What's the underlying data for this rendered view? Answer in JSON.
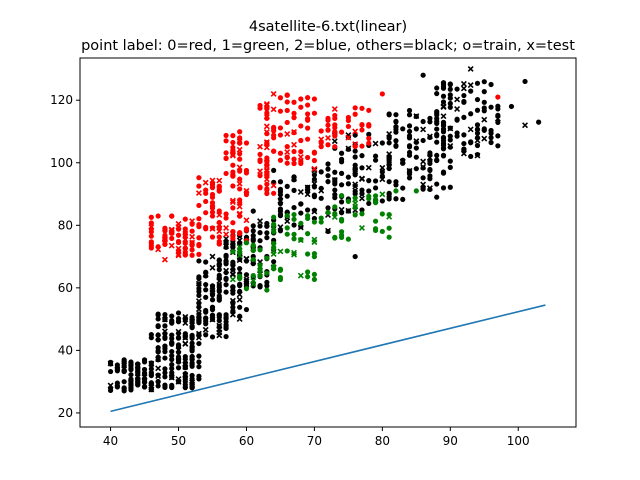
{
  "chart_data": {
    "type": "scatter",
    "title": "4satellite-6.txt(linear)",
    "subtitle": "point label: 0=red, 1=green, 2=blue, others=black; o=train, x=test",
    "xlim": [
      35.5,
      108.5
    ],
    "ylim": [
      15.5,
      133.5
    ],
    "x_ticks": [
      40,
      50,
      60,
      70,
      80,
      90,
      100
    ],
    "y_ticks": [
      20,
      40,
      60,
      80,
      100,
      120
    ],
    "grid": false,
    "colors": {
      "label0": "#ff0000",
      "label1": "#008000",
      "other": "#000000",
      "line": "#1f77b4"
    },
    "line": {
      "x": [
        40,
        104
      ],
      "y": [
        20.5,
        54.5
      ]
    },
    "clusters": [
      {
        "label": "other",
        "color": "#000000",
        "x": [
          40,
          46
        ],
        "y": [
          27,
          37
        ],
        "n": 90,
        "seed": 1
      },
      {
        "label": "other",
        "color": "#000000",
        "x": [
          46,
          53
        ],
        "y": [
          28,
          52
        ],
        "n": 160,
        "seed": 2
      },
      {
        "label": "other",
        "color": "#000000",
        "x": [
          53,
          57
        ],
        "y": [
          44,
          70
        ],
        "n": 90,
        "seed": 3
      },
      {
        "label": "other",
        "color": "#000000",
        "x": [
          57,
          60
        ],
        "y": [
          50,
          78
        ],
        "n": 70,
        "seed": 4
      },
      {
        "label": "other",
        "color": "#000000",
        "x": [
          60,
          64
        ],
        "y": [
          58,
          85
        ],
        "n": 50,
        "seed": 5
      },
      {
        "label": "other",
        "color": "#000000",
        "x": [
          64,
          72
        ],
        "y": [
          78,
          98
        ],
        "n": 60,
        "seed": 6
      },
      {
        "label": "other",
        "color": "#000000",
        "x": [
          72,
          82
        ],
        "y": [
          84,
          110
        ],
        "n": 90,
        "seed": 7
      },
      {
        "label": "other",
        "color": "#000000",
        "x": [
          80,
          90
        ],
        "y": [
          88,
          118
        ],
        "n": 110,
        "seed": 8
      },
      {
        "label": "other",
        "color": "#000000",
        "x": [
          88,
          97
        ],
        "y": [
          102,
          126
        ],
        "n": 90,
        "seed": 9
      },
      {
        "label": "0",
        "color": "#ff0000",
        "x": [
          46,
          53
        ],
        "y": [
          70,
          83
        ],
        "n": 70,
        "seed": 10
      },
      {
        "label": "0",
        "color": "#ff0000",
        "x": [
          53,
          57
        ],
        "y": [
          72,
          96
        ],
        "n": 50,
        "seed": 11
      },
      {
        "label": "0",
        "color": "#ff0000",
        "x": [
          57,
          60
        ],
        "y": [
          74,
          110
        ],
        "n": 60,
        "seed": 12
      },
      {
        "label": "0",
        "color": "#ff0000",
        "x": [
          62,
          64
        ],
        "y": [
          90,
          121
        ],
        "n": 50,
        "seed": 13
      },
      {
        "label": "0",
        "color": "#ff0000",
        "x": [
          65,
          70
        ],
        "y": [
          98,
          122
        ],
        "n": 50,
        "seed": 14
      },
      {
        "label": "0",
        "color": "#ff0000",
        "x": [
          71,
          78
        ],
        "y": [
          105,
          118
        ],
        "n": 40,
        "seed": 15
      },
      {
        "label": "1",
        "color": "#008000",
        "x": [
          58,
          63
        ],
        "y": [
          58,
          75
        ],
        "n": 25,
        "seed": 16
      },
      {
        "label": "1",
        "color": "#008000",
        "x": [
          63,
          70
        ],
        "y": [
          62,
          84
        ],
        "n": 40,
        "seed": 17
      },
      {
        "label": "1",
        "color": "#008000",
        "x": [
          70,
          82
        ],
        "y": [
          75,
          90
        ],
        "n": 40,
        "seed": 18
      }
    ],
    "points": [
      {
        "x": 103,
        "y": 113,
        "color": "#000000",
        "marker": "o"
      },
      {
        "x": 101,
        "y": 126,
        "color": "#000000",
        "marker": "o"
      },
      {
        "x": 99,
        "y": 118,
        "color": "#000000",
        "marker": "o"
      },
      {
        "x": 97,
        "y": 121,
        "color": "#ff0000",
        "marker": "o"
      },
      {
        "x": 80,
        "y": 122,
        "color": "#ff0000",
        "marker": "o"
      },
      {
        "x": 64,
        "y": 122,
        "color": "#ff0000",
        "marker": "x"
      },
      {
        "x": 48,
        "y": 69,
        "color": "#ff0000",
        "marker": "x"
      },
      {
        "x": 82,
        "y": 91,
        "color": "#008000",
        "marker": "o"
      },
      {
        "x": 85,
        "y": 91,
        "color": "#008000",
        "marker": "o"
      },
      {
        "x": 76,
        "y": 70,
        "color": "#000000",
        "marker": "o"
      },
      {
        "x": 93,
        "y": 130,
        "color": "#000000",
        "marker": "x"
      },
      {
        "x": 86,
        "y": 128,
        "color": "#000000",
        "marker": "o"
      },
      {
        "x": 101,
        "y": 112,
        "color": "#000000",
        "marker": "x"
      }
    ]
  }
}
